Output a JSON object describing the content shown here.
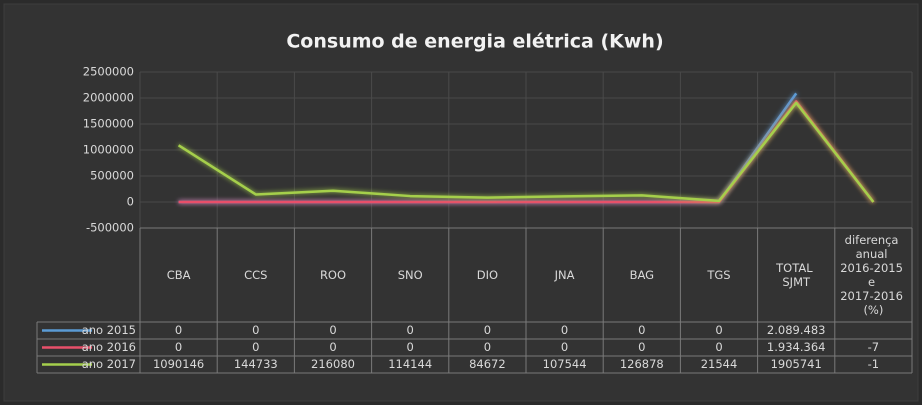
{
  "chart_data": {
    "type": "line",
    "title": "Consumo de energia elétrica (Kwh)",
    "categories": [
      "CBA",
      "CCS",
      "ROO",
      "SNO",
      "DIO",
      "JNA",
      "BAG",
      "TGS",
      "TOTAL SJMT",
      "diferença anual 2016-2015 e 2017-2016 (%)"
    ],
    "series": [
      {
        "name": "ano 2015",
        "color": "#5b9bd5",
        "values": [
          0,
          0,
          0,
          0,
          0,
          0,
          0,
          0,
          2089483,
          null
        ],
        "value_labels": [
          null,
          null,
          null,
          null,
          null,
          null,
          null,
          null,
          "2.089.483",
          null
        ]
      },
      {
        "name": "ano 2016",
        "color": "#e8506a",
        "values": [
          0,
          0,
          0,
          0,
          0,
          0,
          0,
          0,
          1934364,
          -7
        ],
        "value_labels": [
          null,
          null,
          null,
          null,
          null,
          null,
          null,
          null,
          "1.934.364",
          null
        ]
      },
      {
        "name": "ano 2017",
        "color": "#a5cf4c",
        "values": [
          1090146,
          144733,
          216080,
          114144,
          84672,
          107544,
          126878,
          21544,
          1905741,
          -1
        ],
        "value_labels": [
          null,
          null,
          null,
          null,
          null,
          null,
          null,
          null,
          null,
          null
        ]
      }
    ],
    "ylim": [
      -500000,
      2500000
    ],
    "yticks": [
      -500000,
      0,
      500000,
      1000000,
      1500000,
      2000000,
      2500000
    ],
    "grid": true
  }
}
